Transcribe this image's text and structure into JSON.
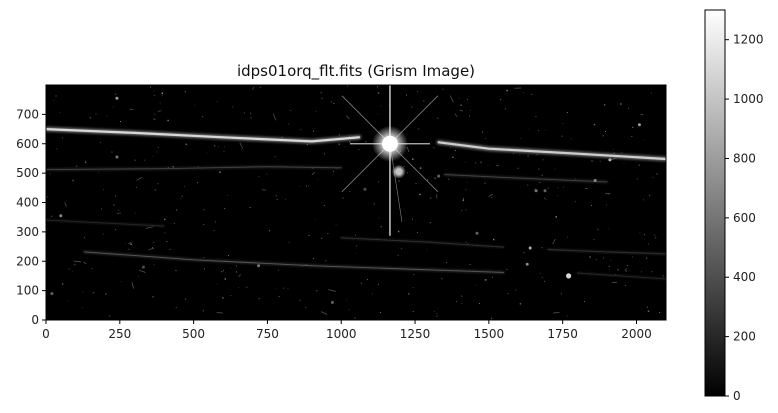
{
  "chart_data": {
    "type": "heatmap",
    "title": "idps01orq_flt.fits (Grism Image)",
    "xlabel": "",
    "ylabel": "",
    "xlim": [
      0,
      2100
    ],
    "ylim": [
      0,
      800
    ],
    "x_ticks": [
      0,
      250,
      500,
      750,
      1000,
      1250,
      1500,
      1750,
      2000
    ],
    "y_ticks": [
      0,
      100,
      200,
      300,
      400,
      500,
      600,
      700
    ],
    "colorbar": {
      "vmin": 0,
      "vmax": 1300,
      "ticks": [
        0,
        200,
        400,
        600,
        800,
        1000,
        1200
      ],
      "colormap": "gray"
    },
    "colors": {
      "background": "#000000",
      "sky_pixel": "#0e0e0e"
    },
    "features": {
      "bright_star": {
        "x": 1165,
        "y": 600,
        "value": 1300
      },
      "secondary_star": {
        "x": 1195,
        "y": 505,
        "value": 1000
      },
      "spectra_traces": [
        {
          "name": "upper-left",
          "points": [
            [
              0,
              650
            ],
            [
              300,
              637
            ],
            [
              600,
              622
            ],
            [
              900,
              608
            ],
            [
              1060,
              622
            ]
          ],
          "value": 1100
        },
        {
          "name": "upper-right",
          "points": [
            [
              1330,
              605
            ],
            [
              1500,
              583
            ],
            [
              1800,
              566
            ],
            [
              2100,
              548
            ]
          ],
          "value": 1050
        },
        {
          "name": "mid-left",
          "points": [
            [
              0,
              512
            ],
            [
              400,
              515
            ],
            [
              750,
              522
            ],
            [
              1000,
              518
            ]
          ],
          "value": 350
        },
        {
          "name": "mid-right",
          "points": [
            [
              1350,
              495
            ],
            [
              1600,
              483
            ],
            [
              1900,
              470
            ]
          ],
          "value": 350
        },
        {
          "name": "lower-left",
          "points": [
            [
              130,
              232
            ],
            [
              500,
              205
            ],
            [
              900,
              185
            ],
            [
              1550,
              162
            ]
          ],
          "value": 450
        },
        {
          "name": "lower-mid",
          "points": [
            [
              1000,
              280
            ],
            [
              1300,
              265
            ],
            [
              1550,
              248
            ]
          ],
          "value": 250
        },
        {
          "name": "lower-right",
          "points": [
            [
              1700,
              240
            ],
            [
              1900,
              232
            ],
            [
              2100,
              225
            ]
          ],
          "value": 250
        },
        {
          "name": "far-left",
          "points": [
            [
              0,
              340
            ],
            [
              200,
              330
            ],
            [
              400,
              320
            ]
          ],
          "value": 200
        },
        {
          "name": "bottom-right",
          "points": [
            [
              1800,
              160
            ],
            [
              2100,
              140
            ]
          ],
          "value": 200
        }
      ],
      "point_sources": [
        {
          "x": 240,
          "y": 755,
          "value": 800
        },
        {
          "x": 1910,
          "y": 545,
          "value": 900
        },
        {
          "x": 1860,
          "y": 475,
          "value": 700
        },
        {
          "x": 1770,
          "y": 150,
          "value": 1100
        },
        {
          "x": 1640,
          "y": 245,
          "value": 900
        },
        {
          "x": 1630,
          "y": 190,
          "value": 700
        },
        {
          "x": 1660,
          "y": 440,
          "value": 600
        },
        {
          "x": 2010,
          "y": 665,
          "value": 800
        },
        {
          "x": 50,
          "y": 355,
          "value": 700
        },
        {
          "x": 720,
          "y": 185,
          "value": 600
        },
        {
          "x": 240,
          "y": 555,
          "value": 600
        },
        {
          "x": 20,
          "y": 90,
          "value": 500
        },
        {
          "x": 970,
          "y": 60,
          "value": 500
        },
        {
          "x": 1460,
          "y": 295,
          "value": 500
        },
        {
          "x": 1080,
          "y": 445,
          "value": 400
        },
        {
          "x": 1330,
          "y": 490,
          "value": 500
        },
        {
          "x": 1690,
          "y": 440,
          "value": 500
        },
        {
          "x": 330,
          "y": 180,
          "value": 400
        }
      ]
    }
  }
}
